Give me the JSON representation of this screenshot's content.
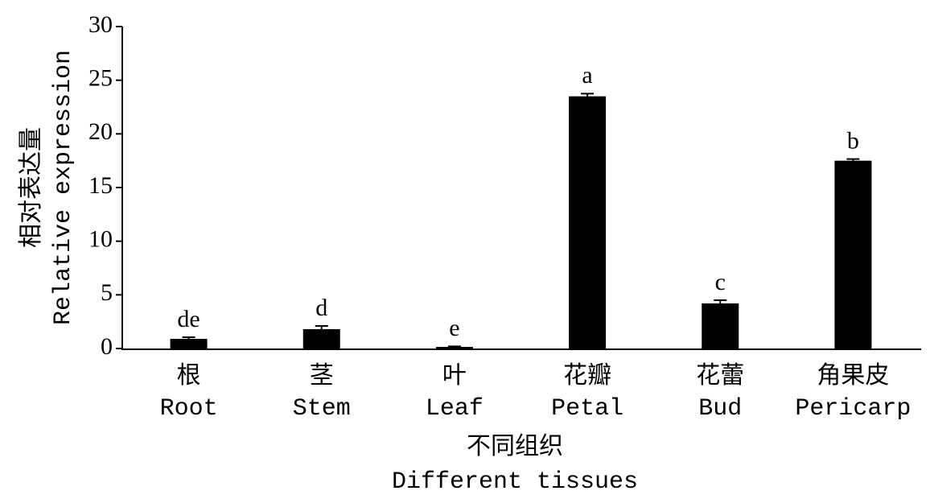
{
  "chart_data": {
    "type": "bar",
    "y_label": [
      "相对表达量",
      "Relative expression"
    ],
    "x_label": [
      "不同组织",
      "Different tissues"
    ],
    "categories": [
      [
        "根",
        "Root"
      ],
      [
        "茎",
        "Stem"
      ],
      [
        "叶",
        "Leaf"
      ],
      [
        "花瓣",
        "Petal"
      ],
      [
        "花蕾",
        "Bud"
      ],
      [
        "角果皮",
        "Pericarp"
      ]
    ],
    "values": [
      0.9,
      1.8,
      0.15,
      23.5,
      4.2,
      17.5
    ],
    "errors": [
      0.15,
      0.3,
      0.05,
      0.25,
      0.3,
      0.15
    ],
    "significance": [
      "de",
      "d",
      "e",
      "a",
      "c",
      "b"
    ],
    "color": "#000000",
    "ylim": [
      0,
      30
    ],
    "yticks": [
      0,
      5,
      10,
      15,
      20,
      25,
      30
    ]
  }
}
